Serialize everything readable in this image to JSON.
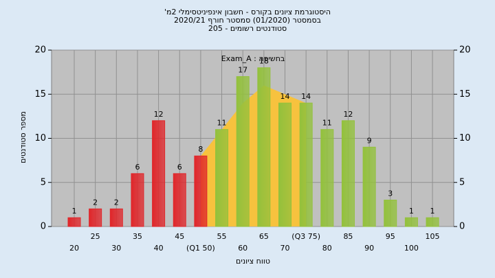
{
  "chart_data": {
    "type": "bar",
    "title": [
      "היסטוגרמת ציונים בקורס - חשבון אינפיניטסימלי 2מ'",
      "בסמסטר (01/2020) סמסטר חורף 2020/21",
      "סטודנטים רשומים - 205"
    ],
    "annotation": "בחשיפה : Exam_A",
    "xlabel": "טווח ציונים",
    "ylabel": "מספר סטודנטים",
    "categories": [
      "20",
      "25",
      "30",
      "35",
      "40",
      "45",
      "(Q1 50)",
      "55",
      "60",
      "65",
      "70",
      "(Q3 75)",
      "80",
      "85",
      "90",
      "95",
      "100",
      "105"
    ],
    "values": [
      1,
      2,
      2,
      6,
      12,
      6,
      8,
      11,
      17,
      18,
      14,
      14,
      11,
      12,
      9,
      3,
      1,
      1
    ],
    "colors": [
      "#e0262a",
      "#e0262a",
      "#e0262a",
      "#e0262a",
      "#e0262a",
      "#e0262a",
      "#e0262a",
      "#93c13c",
      "#93c13c",
      "#93c13c",
      "#93c13c",
      "#93c13c",
      "#93c13c",
      "#93c13c",
      "#93c13c",
      "#93c13c",
      "#93c13c",
      "#93c13c"
    ],
    "area": {
      "color": "#f7c23e",
      "values": [
        null,
        null,
        null,
        null,
        null,
        null,
        8,
        11,
        14,
        16,
        15,
        14,
        null,
        null,
        null,
        null,
        null,
        null
      ]
    },
    "ylim": [
      0,
      20
    ],
    "yticks": [
      0,
      5,
      10,
      15,
      20
    ],
    "y2lim": [
      0,
      20
    ],
    "y2ticks": [
      0,
      5,
      10,
      15,
      20
    ],
    "grid": true
  }
}
